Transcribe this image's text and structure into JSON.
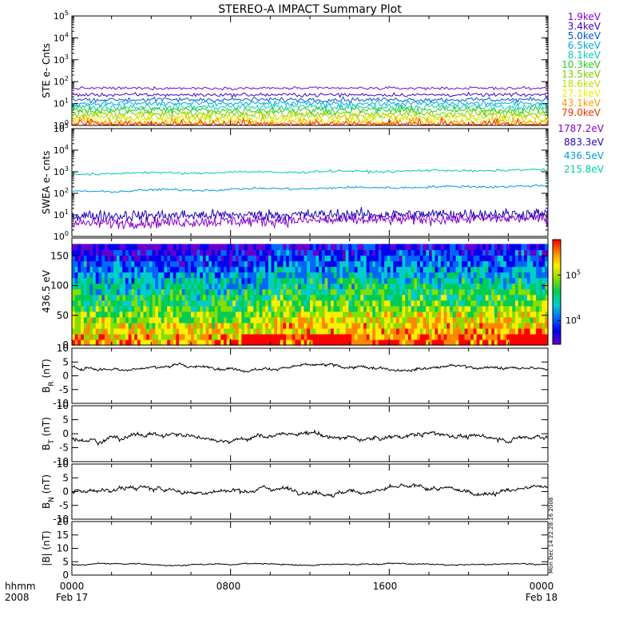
{
  "title": "STEREO-A IMPACT Summary Plot",
  "footer": {
    "left_top": "hhmm",
    "left_bottom": "2008",
    "ticks": [
      "0000",
      "0800",
      "1600",
      "0000"
    ],
    "date_start": "Feb 17",
    "date_end": "Feb 18"
  },
  "side_note": "Mon Dec 14 22:28:16 2008",
  "colors": {
    "axis": "#000000",
    "ste_palette": [
      "#8800cc",
      "#4400bb",
      "#0055dd",
      "#00a8e0",
      "#00ccbb",
      "#22cc22",
      "#77cc00",
      "#bbdd00",
      "#eeee00",
      "#ff9900",
      "#ee3300"
    ],
    "swea_palette": [
      "#8800cc",
      "#2200bb",
      "#0099dd",
      "#00ccaa"
    ],
    "colorbar": [
      "#ff0000",
      "#ff8800",
      "#ffee00",
      "#88dd00",
      "#00cc55",
      "#00cccc",
      "#0066ff",
      "#0000ee",
      "#6600cc"
    ]
  },
  "chart_data": [
    {
      "type": "line",
      "ylabel": "STE e- Cnts",
      "yscale": "log",
      "ylim": [
        1,
        100000
      ],
      "yticks": [
        "10^0",
        "10^1",
        "10^2",
        "10^3",
        "10^4",
        "10^5"
      ],
      "xlim": [
        0,
        24
      ],
      "legend_placement": "right",
      "series": [
        {
          "name": "1.9keV",
          "level": 50
        },
        {
          "name": "3.4keV",
          "level": 25
        },
        {
          "name": "5.0keV",
          "level": 15
        },
        {
          "name": "6.5keV",
          "level": 10
        },
        {
          "name": "8.1keV",
          "level": 7
        },
        {
          "name": "10.3keV",
          "level": 5
        },
        {
          "name": "13.5keV",
          "level": 3.5
        },
        {
          "name": "18.6keV",
          "level": 2.5
        },
        {
          "name": "27.1keV",
          "level": 1.8
        },
        {
          "name": "43.1keV",
          "level": 1.3
        },
        {
          "name": "79.0keV",
          "level": 1.05
        }
      ]
    },
    {
      "type": "line",
      "ylabel": "SWEA e- cnts",
      "yscale": "log",
      "ylim": [
        1,
        100000
      ],
      "yticks": [
        "10^0",
        "10^1",
        "10^2",
        "10^3",
        "10^4",
        "10^5"
      ],
      "xlim": [
        0,
        24
      ],
      "legend_placement": "right",
      "series": [
        {
          "name": "1787.2eV",
          "start": 4,
          "end": 7
        },
        {
          "name": "883.3eV",
          "start": 9,
          "end": 11
        },
        {
          "name": "436.5eV",
          "start": 120,
          "end": 220
        },
        {
          "name": "215.8eV",
          "start": 800,
          "end": 1200
        }
      ]
    },
    {
      "type": "heatmap",
      "ylabel": "436.5 eV",
      "ylim": [
        0,
        180
      ],
      "yticks": [
        0,
        50,
        100,
        150
      ],
      "xlim": [
        0,
        24
      ],
      "colorbar": {
        "scale": "log",
        "range": [
          3000,
          600000
        ],
        "ticks": [
          "10^4",
          "10^5"
        ]
      }
    },
    {
      "type": "line",
      "ylabel": "B_R (nT)",
      "ylim": [
        -10,
        10
      ],
      "yticks": [
        -10,
        -5,
        0,
        5,
        10
      ],
      "xlim": [
        0,
        24
      ],
      "series": [
        {
          "mean": 3,
          "noise": 1.3
        }
      ]
    },
    {
      "type": "line",
      "ylabel": "B_T (nT)",
      "ylim": [
        -10,
        10
      ],
      "yticks": [
        -10,
        -5,
        0,
        5,
        10
      ],
      "xlim": [
        0,
        24
      ],
      "series": [
        {
          "mean": -1,
          "noise": 2
        }
      ]
    },
    {
      "type": "line",
      "ylabel": "B_N (nT)",
      "ylim": [
        -10,
        10
      ],
      "yticks": [
        -10,
        -5,
        0,
        5,
        10
      ],
      "xlim": [
        0,
        24
      ],
      "series": [
        {
          "mean": 0.5,
          "noise": 2
        }
      ]
    },
    {
      "type": "line",
      "ylabel": "|B| (nT)",
      "ylim": [
        0,
        20
      ],
      "yticks": [
        0,
        5,
        10,
        15,
        20
      ],
      "xlim": [
        0,
        24
      ],
      "series": [
        {
          "mean": 4,
          "noise": 0.6
        }
      ]
    }
  ]
}
